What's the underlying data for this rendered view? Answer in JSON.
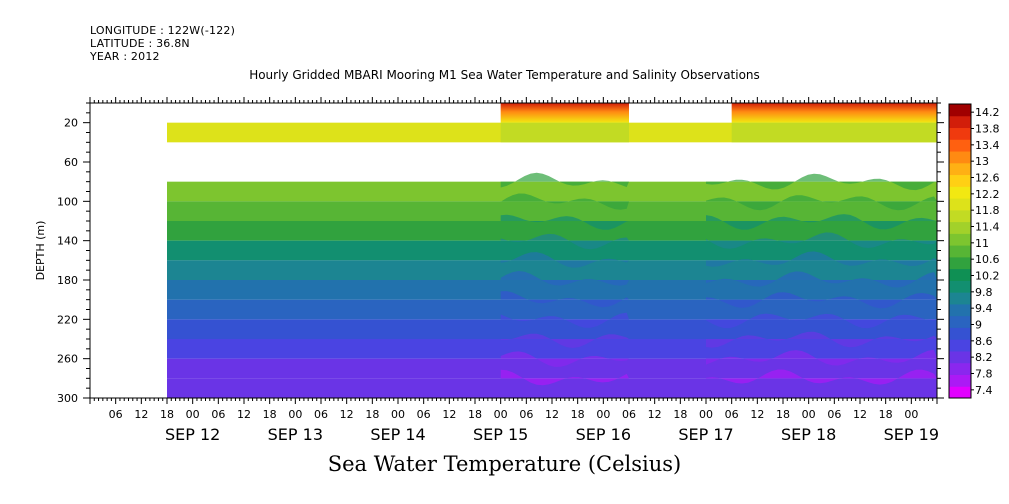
{
  "header": {
    "longitude": "LONGITUDE : 122W(-122)",
    "latitude": "LATITUDE : 36.8N",
    "year": "YEAR : 2012"
  },
  "chart_data": {
    "type": "heatmap",
    "title": "Hourly Gridded MBARI Mooring M1 Sea Water Temperature and Salinity Observations",
    "xlabel": "Sea Water Temperature (Celsius)",
    "ylabel": "DEPTH (m)",
    "x_time_start": "2012-09-11 00:00",
    "x_time_end": "2012-09-19 06:00",
    "x_hour_ticks": [
      "06",
      "12",
      "18",
      "00",
      "06",
      "12",
      "18",
      "00",
      "06",
      "12",
      "18",
      "00",
      "06",
      "12",
      "18",
      "00",
      "06",
      "12",
      "18",
      "00",
      "06",
      "12",
      "18",
      "00",
      "06",
      "12",
      "18",
      "00",
      "06",
      "12",
      "18",
      "00"
    ],
    "x_day_labels": [
      "SEP 12",
      "SEP 13",
      "SEP 14",
      "SEP 15",
      "SEP 16",
      "SEP 17",
      "SEP 18",
      "SEP 19"
    ],
    "y_ticks": [
      20,
      60,
      100,
      140,
      180,
      220,
      260,
      300
    ],
    "ylim": [
      300,
      0
    ],
    "colorbar_ticks": [
      "7.4",
      "7.8",
      "8.2",
      "8.6",
      "9",
      "9.4",
      "9.8",
      "10.2",
      "10.6",
      "11",
      "11.4",
      "11.8",
      "12.2",
      "12.6",
      "13",
      "13.4",
      "13.8",
      "14.2"
    ],
    "colorbar_colors": [
      "#e200ff",
      "#ab1af5",
      "#8a27ee",
      "#6a34e6",
      "#4a44e2",
      "#3552d2",
      "#2a64c0",
      "#2272ad",
      "#1c8592",
      "#128f70",
      "#0f9054",
      "#31a23e",
      "#57b535",
      "#7dc52f",
      "#a2d12a",
      "#c2db23",
      "#dde21a",
      "#f2e812",
      "#ffd014",
      "#ffb014",
      "#ff8a12",
      "#ff6010",
      "#f03a0e",
      "#d21e0a",
      "#a00000"
    ],
    "depth_bands": [
      {
        "depth_from": 20,
        "depth_to": 40,
        "temperature": 11.9
      },
      {
        "depth_from": 80,
        "depth_to": 100,
        "temperature": 11.0
      },
      {
        "depth_from": 100,
        "depth_to": 120,
        "temperature": 10.8
      },
      {
        "depth_from": 120,
        "depth_to": 140,
        "temperature": 10.4
      },
      {
        "depth_from": 140,
        "depth_to": 160,
        "temperature": 10.0
      },
      {
        "depth_from": 160,
        "depth_to": 180,
        "temperature": 9.7
      },
      {
        "depth_from": 180,
        "depth_to": 200,
        "temperature": 9.4
      },
      {
        "depth_from": 200,
        "depth_to": 220,
        "temperature": 9.1
      },
      {
        "depth_from": 220,
        "depth_to": 240,
        "temperature": 8.9
      },
      {
        "depth_from": 240,
        "depth_to": 260,
        "temperature": 8.6
      },
      {
        "depth_from": 260,
        "depth_to": 280,
        "temperature": 8.3
      },
      {
        "depth_from": 280,
        "depth_to": 300,
        "temperature": 8.1
      }
    ],
    "surface_warm_periods": [
      {
        "start": "2012-09-15 00:00",
        "end": "2012-09-16 06:00",
        "depth_from": 0,
        "depth_to": 20,
        "temperature_range": [
          12.2,
          14.2
        ]
      },
      {
        "start": "2012-09-17 06:00",
        "end": "2012-09-19 06:00",
        "depth_from": 0,
        "depth_to": 20,
        "temperature_range": [
          12.2,
          14.2
        ]
      }
    ],
    "data_start": "2012-09-11 18:00"
  }
}
